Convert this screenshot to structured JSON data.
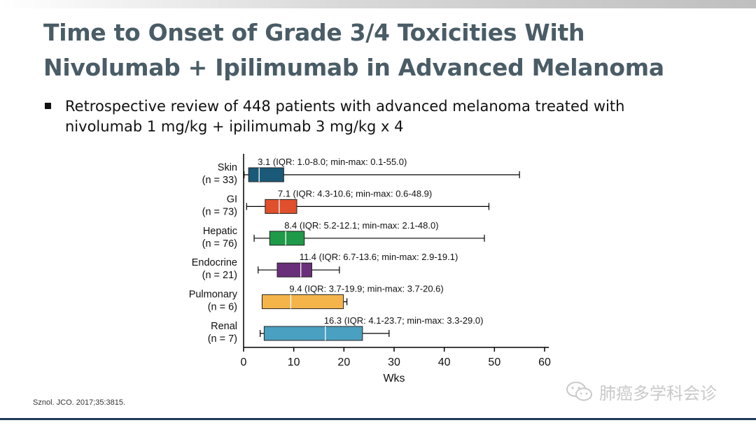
{
  "slide": {
    "title_line1": "Time to Onset of Grade 3/4 Toxicities With",
    "title_line2": "Nivolumab + Ipilimumab in Advanced Melanoma",
    "bullet_line1": "Retrospective review of 448 patients with advanced melanoma treated with",
    "bullet_line2": "nivolumab 1 mg/kg + ipilimumab 3 mg/kg x 4",
    "footnote": "Sznol. JCO. 2017;35:3815.",
    "watermark": "肺癌多学科会诊"
  },
  "chart_data": {
    "type": "boxplot",
    "orientation": "horizontal",
    "xlabel": "Wks",
    "xlim": [
      0,
      60
    ],
    "xticks": [
      0,
      10,
      20,
      30,
      40,
      50,
      60
    ],
    "categories": [
      {
        "name": "Skin",
        "n": "(n = 33)",
        "median": 3.1,
        "q1": 1.0,
        "q3": 8.0,
        "min": 0.1,
        "max": 55.0,
        "label": "3.1 (IQR: 1.0-8.0; min-max: 0.1-55.0)",
        "color": "#1a5a78"
      },
      {
        "name": "GI",
        "n": "(n = 73)",
        "median": 7.1,
        "q1": 4.3,
        "q3": 10.6,
        "min": 0.6,
        "max": 48.9,
        "label": "7.1 (IQR: 4.3-10.6; min-max: 0.6-48.9)",
        "color": "#e0502c"
      },
      {
        "name": "Hepatic",
        "n": "(n = 76)",
        "median": 8.4,
        "q1": 5.2,
        "q3": 12.1,
        "min": 2.1,
        "max": 48.0,
        "label": "8.4 (IQR: 5.2-12.1; min-max: 2.1-48.0)",
        "color": "#1f9a48"
      },
      {
        "name": "Endocrine",
        "n": "(n = 21)",
        "median": 11.4,
        "q1": 6.7,
        "q3": 13.6,
        "min": 2.9,
        "max": 19.1,
        "label": "11.4 (IQR: 6.7-13.6; min-max: 2.9-19.1)",
        "color": "#6a2f7a"
      },
      {
        "name": "Pulmonary",
        "n": "(n = 6)",
        "median": 9.4,
        "q1": 3.7,
        "q3": 19.9,
        "min": 3.7,
        "max": 20.6,
        "label": "9.4 (IQR: 3.7-19.9; min-max: 3.7-20.6)",
        "color": "#f5b44a"
      },
      {
        "name": "Renal",
        "n": "(n = 7)",
        "median": 16.3,
        "q1": 4.1,
        "q3": 23.7,
        "min": 3.3,
        "max": 29.0,
        "label": "16.3 (IQR: 4.1-23.7; min-max: 3.3-29.0)",
        "color": "#4aa0c0"
      }
    ]
  }
}
